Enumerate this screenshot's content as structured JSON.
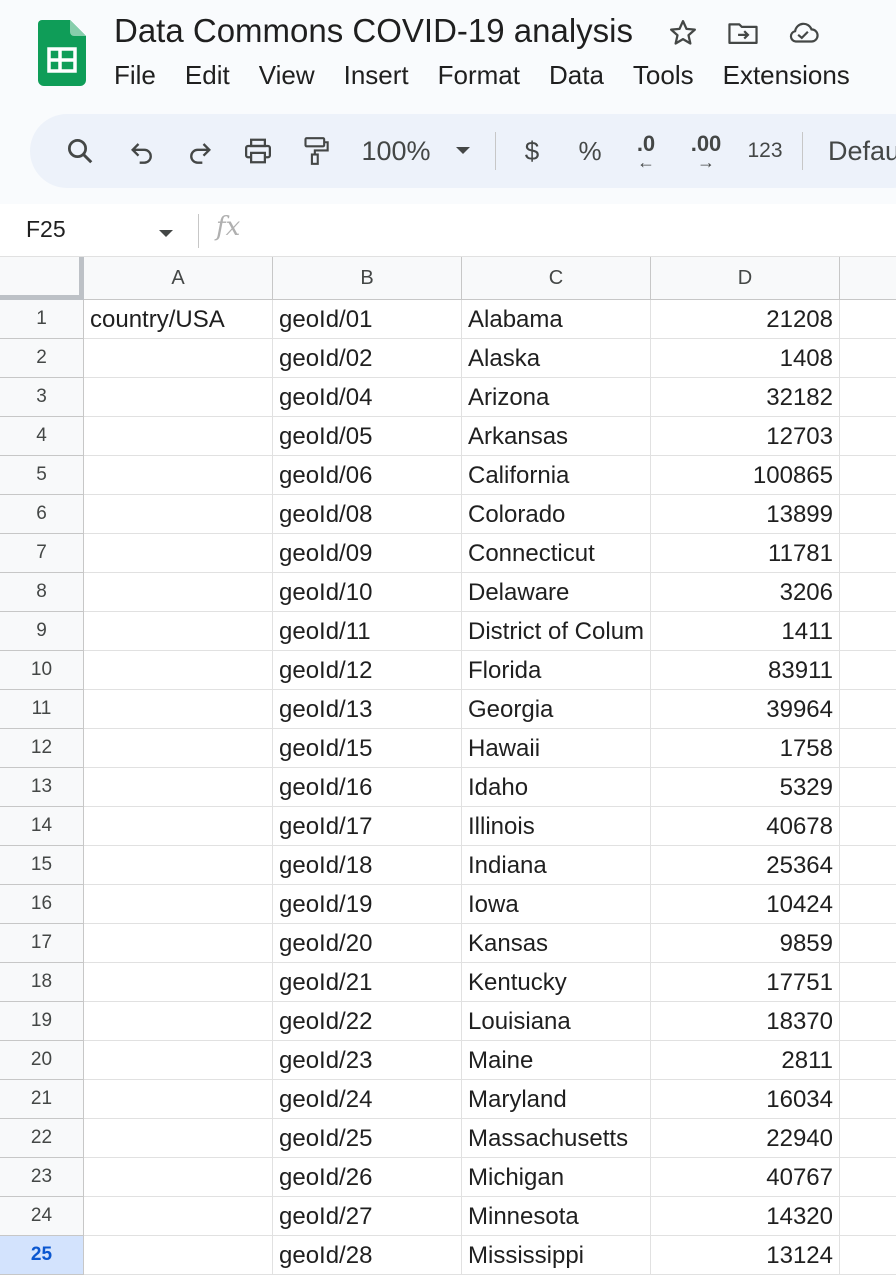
{
  "app": {
    "doc_title": "Data Commons COVID-19 analysis",
    "accent_color": "#0f9d58",
    "title_icons": [
      "star-icon",
      "move-to-folder-icon",
      "cloud-saved-icon"
    ]
  },
  "menu": [
    "File",
    "Edit",
    "View",
    "Insert",
    "Format",
    "Data",
    "Tools",
    "Extensions"
  ],
  "toolbar": {
    "zoom": "100%",
    "currency": "$",
    "percent": "%",
    "decrease_decimal": ".0",
    "increase_decimal": ".00",
    "number_format": "123",
    "font": "Defau"
  },
  "formula_bar": {
    "name_box": "F25",
    "fx_label": "fx",
    "value": ""
  },
  "columns": [
    "A",
    "B",
    "C",
    "D"
  ],
  "selected_row": "25",
  "rows": [
    {
      "n": "1",
      "a": "country/USA",
      "b": "geoId/01",
      "c": "Alabama",
      "d": "21208"
    },
    {
      "n": "2",
      "a": "",
      "b": "geoId/02",
      "c": "Alaska",
      "d": "1408"
    },
    {
      "n": "3",
      "a": "",
      "b": "geoId/04",
      "c": "Arizona",
      "d": "32182"
    },
    {
      "n": "4",
      "a": "",
      "b": "geoId/05",
      "c": "Arkansas",
      "d": "12703"
    },
    {
      "n": "5",
      "a": "",
      "b": "geoId/06",
      "c": "California",
      "d": "100865"
    },
    {
      "n": "6",
      "a": "",
      "b": "geoId/08",
      "c": "Colorado",
      "d": "13899"
    },
    {
      "n": "7",
      "a": "",
      "b": "geoId/09",
      "c": "Connecticut",
      "d": "11781"
    },
    {
      "n": "8",
      "a": "",
      "b": "geoId/10",
      "c": "Delaware",
      "d": "3206"
    },
    {
      "n": "9",
      "a": "",
      "b": "geoId/11",
      "c": "District of Colum",
      "d": "1411"
    },
    {
      "n": "10",
      "a": "",
      "b": "geoId/12",
      "c": "Florida",
      "d": "83911"
    },
    {
      "n": "11",
      "a": "",
      "b": "geoId/13",
      "c": "Georgia",
      "d": "39964"
    },
    {
      "n": "12",
      "a": "",
      "b": "geoId/15",
      "c": "Hawaii",
      "d": "1758"
    },
    {
      "n": "13",
      "a": "",
      "b": "geoId/16",
      "c": "Idaho",
      "d": "5329"
    },
    {
      "n": "14",
      "a": "",
      "b": "geoId/17",
      "c": "Illinois",
      "d": "40678"
    },
    {
      "n": "15",
      "a": "",
      "b": "geoId/18",
      "c": "Indiana",
      "d": "25364"
    },
    {
      "n": "16",
      "a": "",
      "b": "geoId/19",
      "c": "Iowa",
      "d": "10424"
    },
    {
      "n": "17",
      "a": "",
      "b": "geoId/20",
      "c": "Kansas",
      "d": "9859"
    },
    {
      "n": "18",
      "a": "",
      "b": "geoId/21",
      "c": "Kentucky",
      "d": "17751"
    },
    {
      "n": "19",
      "a": "",
      "b": "geoId/22",
      "c": "Louisiana",
      "d": "18370"
    },
    {
      "n": "20",
      "a": "",
      "b": "geoId/23",
      "c": "Maine",
      "d": "2811"
    },
    {
      "n": "21",
      "a": "",
      "b": "geoId/24",
      "c": "Maryland",
      "d": "16034"
    },
    {
      "n": "22",
      "a": "",
      "b": "geoId/25",
      "c": "Massachusetts",
      "d": "22940"
    },
    {
      "n": "23",
      "a": "",
      "b": "geoId/26",
      "c": "Michigan",
      "d": "40767"
    },
    {
      "n": "24",
      "a": "",
      "b": "geoId/27",
      "c": "Minnesota",
      "d": "14320"
    },
    {
      "n": "25",
      "a": "",
      "b": "geoId/28",
      "c": "Mississippi",
      "d": "13124"
    }
  ]
}
